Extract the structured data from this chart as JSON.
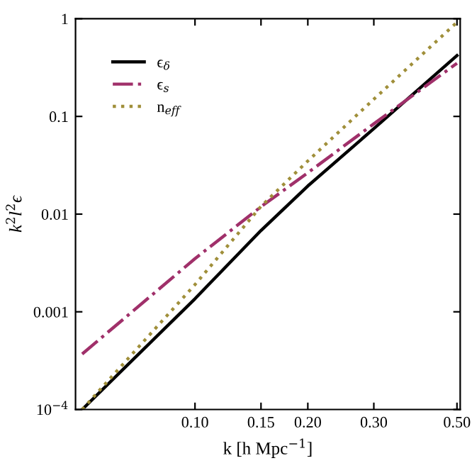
{
  "chart_data": {
    "type": "line",
    "xlabel": "k [h Mpc$^{−1}$]",
    "ylabel": "k$^{2}$l$^{2}$ϵ",
    "log": "xy",
    "x": [
      0.05,
      0.1,
      0.15,
      0.2,
      0.3,
      0.5
    ],
    "xlim": [
      0.048,
      0.51
    ],
    "xticks": [
      {
        "value": 0.1,
        "label": "0.10"
      },
      {
        "value": 0.15,
        "label": "0.15"
      },
      {
        "value": 0.2,
        "label": "0.20"
      },
      {
        "value": 0.3,
        "label": "0.30"
      },
      {
        "value": 0.5,
        "label": "0.50"
      }
    ],
    "ylim": [
      0.0001,
      1
    ],
    "yticks": [
      {
        "value": 0.0001,
        "label": "10$^{−4}$"
      },
      0.001,
      0.01,
      0.1,
      1
    ],
    "legend": "top left",
    "grid": false,
    "series": [
      {
        "name": "ϵ$_{δ}$",
        "color": "#000000",
        "line_style": "solid",
        "values": [
          0.0001,
          0.00136,
          0.0068,
          0.0194,
          0.075,
          0.42
        ]
      },
      {
        "name": "ϵ$_{s}$",
        "color": "#a0306a",
        "line_style": "dashdot",
        "values": [
          0.00037,
          0.0035,
          0.0119,
          0.0265,
          0.084,
          0.35
        ]
      },
      {
        "name": "n$_{eff}$",
        "color": "#a08f3a",
        "line_style": "dotted",
        "values": [
          0.0001,
          0.0019,
          0.012,
          0.035,
          0.15,
          0.92
        ]
      }
    ]
  }
}
